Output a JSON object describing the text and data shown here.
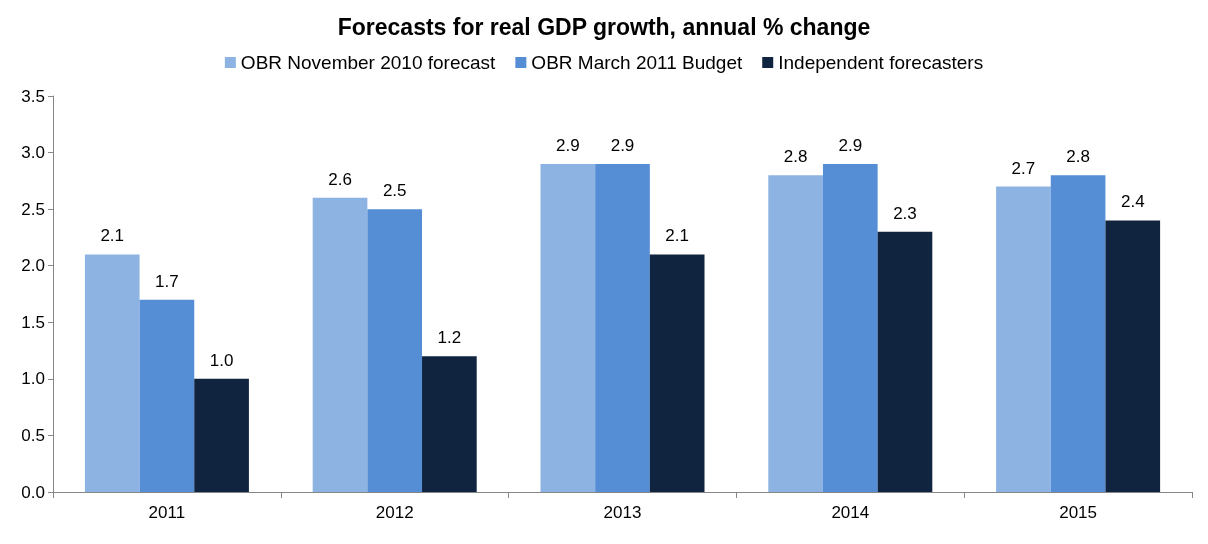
{
  "chart_data": {
    "type": "bar",
    "title": "Forecasts for real GDP growth, annual % change",
    "categories": [
      "2011",
      "2012",
      "2013",
      "2014",
      "2015"
    ],
    "series": [
      {
        "name": "OBR November 2010 forecast",
        "color": "#8db3e2",
        "values": [
          2.1,
          2.6,
          2.9,
          2.8,
          2.7
        ],
        "value_labels": [
          "2.1",
          "2.6",
          "2.9",
          "2.8",
          "2.7"
        ]
      },
      {
        "name": "OBR March 2011 Budget",
        "color": "#558ed5",
        "values": [
          1.7,
          2.5,
          2.9,
          2.9,
          2.8
        ],
        "value_labels": [
          "1.7",
          "2.5",
          "2.9",
          "2.9",
          "2.8"
        ]
      },
      {
        "name": "Independent forecasters",
        "color": "#10243f",
        "values": [
          1.0,
          1.2,
          2.1,
          2.3,
          2.4
        ],
        "value_labels": [
          "1.0",
          "1.2",
          "2.1",
          "2.3",
          "2.4"
        ]
      }
    ],
    "ylim": [
      0,
      3.5
    ],
    "yticks": [
      {
        "value": 0,
        "label": "0.0"
      },
      0.5,
      {
        "value": 1,
        "label": "1.0"
      },
      1.5,
      {
        "value": 2,
        "label": "2.0"
      },
      2.5,
      {
        "value": 3,
        "label": "3.0"
      },
      3.5
    ],
    "grid": false,
    "legend": "top"
  }
}
